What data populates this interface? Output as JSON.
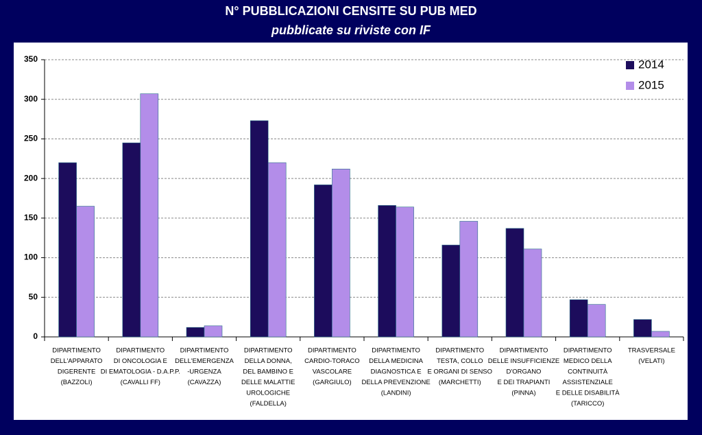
{
  "chart_data": {
    "type": "bar",
    "title": "N° PUBBLICAZIONI CENSITE SU PUB MED",
    "subtitle": "pubblicate su riviste con IF",
    "categories": [
      [
        "DIPARTIMENTO",
        "DELL'APPARATO",
        "DIGERENTE",
        "(BAZZOLI)"
      ],
      [
        "DIPARTIMENTO",
        "DI ONCOLOGIA E",
        "DI EMATOLOGIA - D.A.P.P.",
        "(CAVALLI FF)"
      ],
      [
        "DIPARTIMENTO",
        "DELL'EMERGENZA",
        "-URGENZA",
        "(CAVAZZA)"
      ],
      [
        "DIPARTIMENTO",
        "DELLA DONNA,",
        "DEL BAMBINO E",
        "DELLE MALATTIE",
        "UROLOGICHE",
        "(FALDELLA)"
      ],
      [
        "DIPARTIMENTO",
        "CARDIO-TORACO",
        "VASCOLARE",
        "(GARGIULO)"
      ],
      [
        "DIPARTIMENTO",
        "DELLA MEDICINA",
        "DIAGNOSTICA E",
        "DELLA PREVENZIONE",
        "(LANDINI)"
      ],
      [
        "DIPARTIMENTO",
        "TESTA, COLLO",
        "E ORGANI DI SENSO",
        "(MARCHETTI)"
      ],
      [
        "DIPARTIMENTO",
        "DELLE INSUFFICIENZE",
        "D'ORGANO",
        "E DEI TRAPIANTI",
        "(PINNA)"
      ],
      [
        "DIPARTIMENTO",
        "MEDICO DELLA",
        "CONTINUITÀ",
        "ASSISTENZIALE",
        "E DELLE DISABILITÀ",
        "(TARICCO)"
      ],
      [
        "TRASVERSALE",
        "(VELATI)"
      ]
    ],
    "series": [
      {
        "name": "2014",
        "color": "#1c0c5c",
        "values": [
          220,
          245,
          12,
          273,
          192,
          166,
          116,
          137,
          47,
          22
        ]
      },
      {
        "name": "2015",
        "color": "#b38de9",
        "values": [
          165,
          307,
          14,
          220,
          212,
          164,
          146,
          111,
          41,
          7
        ]
      }
    ],
    "ylim": [
      0,
      350
    ],
    "yticks": [
      0,
      50,
      100,
      150,
      200,
      250,
      300,
      350
    ],
    "grid": true,
    "legend": "top-right"
  }
}
